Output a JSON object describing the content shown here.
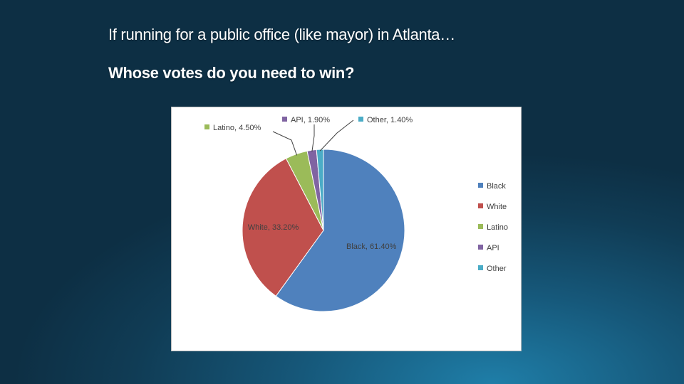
{
  "slide": {
    "title": "If running for a public office (like mayor) in Atlanta…",
    "subtitle": "Whose votes do you need to win?"
  },
  "chart_data": {
    "type": "pie",
    "title": "",
    "legend_position": "right",
    "slices": [
      {
        "label": "Black",
        "value": 61.4,
        "data_label": "Black, 61.40%",
        "color": "#4f81bd"
      },
      {
        "label": "White",
        "value": 33.2,
        "data_label": "White, 33.20%",
        "color": "#c0504d"
      },
      {
        "label": "Latino",
        "value": 4.5,
        "data_label": "Latino, 4.50%",
        "color": "#9bbb59"
      },
      {
        "label": "API",
        "value": 1.9,
        "data_label": "API, 1.90%",
        "color": "#8064a2"
      },
      {
        "label": "Other",
        "value": 1.4,
        "data_label": "Other, 1.40%",
        "color": "#4bacc6"
      }
    ]
  }
}
